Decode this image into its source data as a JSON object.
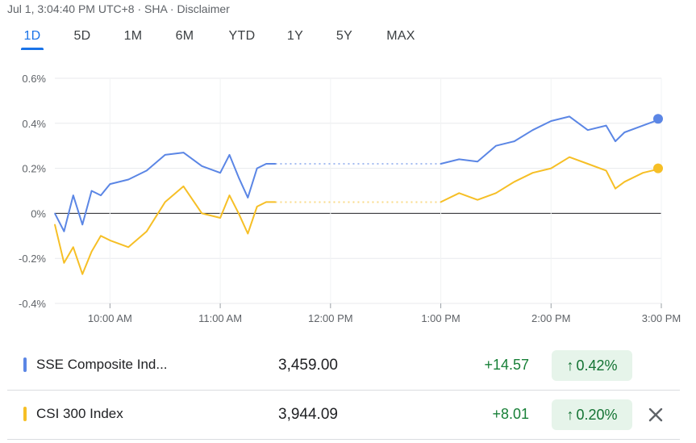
{
  "header": {
    "info": "Jul 1, 3:04:40 PM UTC+8 · SHA · Disclaimer"
  },
  "tabs": [
    "1D",
    "5D",
    "1M",
    "6M",
    "YTD",
    "1Y",
    "5Y",
    "MAX"
  ],
  "active_tab": "1D",
  "chart_data": {
    "type": "line",
    "title": "",
    "xlabel": "",
    "ylabel": "",
    "y_ticks": [
      "0.6%",
      "0.4%",
      "0.2%",
      "0%",
      "-0.2%",
      "-0.4%"
    ],
    "ylim": [
      -0.4,
      0.6
    ],
    "x_ticks": [
      "10:00 AM",
      "11:00 AM",
      "12:00 PM",
      "1:00 PM",
      "2:00 PM",
      "3:00 PM"
    ],
    "xlim": [
      "9:30 AM",
      "3:00 PM"
    ],
    "grid": true,
    "lunch_break": {
      "start": "11:30 AM",
      "end": "1:00 PM",
      "style": "dotted"
    },
    "series": [
      {
        "name": "SSE Composite Ind...",
        "color": "#5b86e5",
        "x": [
          "9:30 AM",
          "9:35 AM",
          "9:40 AM",
          "9:45 AM",
          "9:50 AM",
          "9:55 AM",
          "10:00 AM",
          "10:10 AM",
          "10:20 AM",
          "10:30 AM",
          "10:40 AM",
          "10:50 AM",
          "11:00 AM",
          "11:05 AM",
          "11:10 AM",
          "11:15 AM",
          "11:20 AM",
          "11:25 AM",
          "11:30 AM",
          "1:00 PM",
          "1:10 PM",
          "1:20 PM",
          "1:30 PM",
          "1:40 PM",
          "1:50 PM",
          "2:00 PM",
          "2:10 PM",
          "2:20 PM",
          "2:30 PM",
          "2:35 PM",
          "2:40 PM",
          "2:50 PM",
          "3:00 PM"
        ],
        "values": [
          0.0,
          -0.08,
          0.08,
          -0.05,
          0.1,
          0.08,
          0.13,
          0.15,
          0.19,
          0.26,
          0.27,
          0.21,
          0.18,
          0.26,
          0.16,
          0.07,
          0.2,
          0.22,
          0.22,
          0.22,
          0.24,
          0.23,
          0.3,
          0.32,
          0.37,
          0.41,
          0.43,
          0.37,
          0.39,
          0.32,
          0.36,
          0.39,
          0.42
        ]
      },
      {
        "name": "CSI 300 Index",
        "color": "#f6bf26",
        "x": [
          "9:30 AM",
          "9:35 AM",
          "9:40 AM",
          "9:45 AM",
          "9:50 AM",
          "9:55 AM",
          "10:00 AM",
          "10:10 AM",
          "10:20 AM",
          "10:30 AM",
          "10:40 AM",
          "10:50 AM",
          "11:00 AM",
          "11:05 AM",
          "11:10 AM",
          "11:15 AM",
          "11:20 AM",
          "11:25 AM",
          "11:30 AM",
          "1:00 PM",
          "1:10 PM",
          "1:20 PM",
          "1:30 PM",
          "1:40 PM",
          "1:50 PM",
          "2:00 PM",
          "2:10 PM",
          "2:20 PM",
          "2:30 PM",
          "2:35 PM",
          "2:40 PM",
          "2:50 PM",
          "3:00 PM"
        ],
        "values": [
          -0.05,
          -0.22,
          -0.15,
          -0.27,
          -0.17,
          -0.1,
          -0.12,
          -0.15,
          -0.08,
          0.05,
          0.12,
          0.0,
          -0.02,
          0.08,
          0.0,
          -0.09,
          0.03,
          0.05,
          0.05,
          0.05,
          0.09,
          0.06,
          0.09,
          0.14,
          0.18,
          0.2,
          0.25,
          0.22,
          0.19,
          0.11,
          0.14,
          0.18,
          0.2
        ]
      }
    ]
  },
  "legend": [
    {
      "name": "SSE Composite Ind...",
      "price": "3,459.00",
      "change": "+14.57",
      "percent": "0.42%",
      "color": "#5b86e5"
    },
    {
      "name": "CSI 300 Index",
      "price": "3,944.09",
      "change": "+8.01",
      "percent": "0.20%",
      "color": "#f6bf26"
    }
  ],
  "icons": {
    "up_arrow": "arrow-up-icon",
    "close": "close-icon"
  }
}
